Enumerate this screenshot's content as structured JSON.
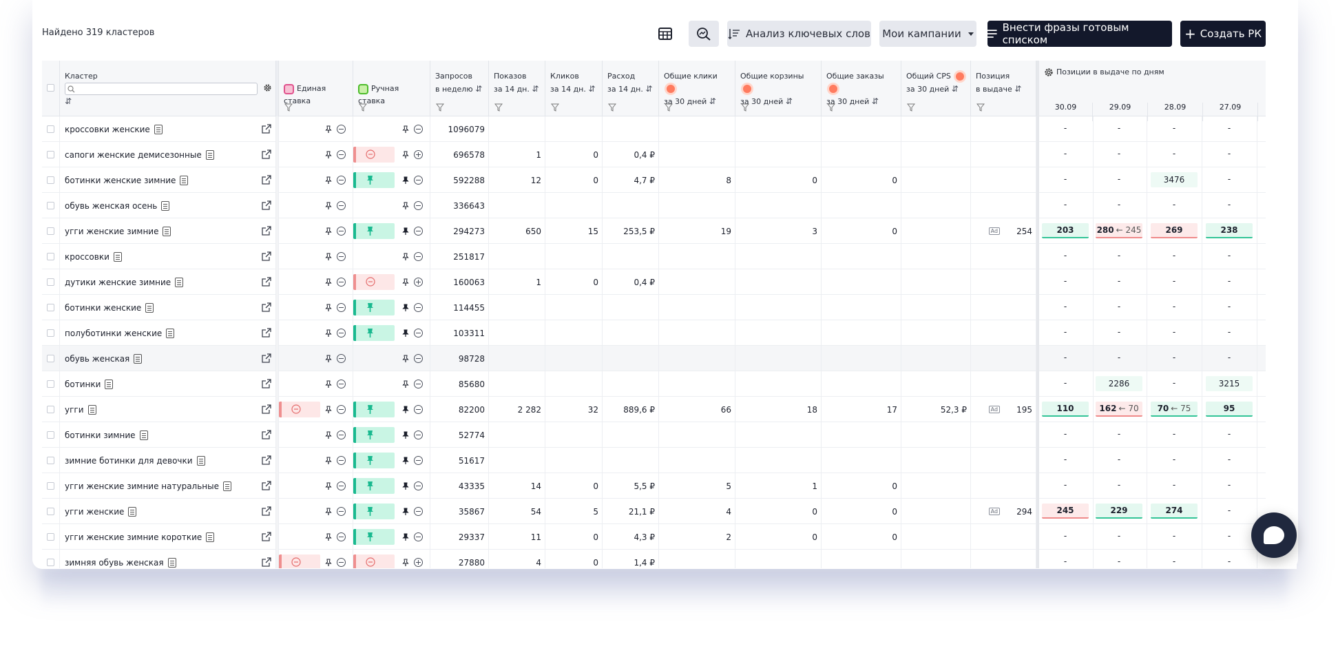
{
  "summary": "Найдено 319 кластеров",
  "toolbar": {
    "analysis_label": "Анализ ключевых слов",
    "campaigns_label": "Мои кампании",
    "bulk_label": "Внести фразы готовым списком",
    "create_label": "Создать РК"
  },
  "headers": {
    "cluster": "Кластер",
    "single_bid": "Единая ставка",
    "manual_bid": "Ручная ставка",
    "queries_1": "Запросов",
    "queries_2": "в неделю",
    "shows_1": "Показов",
    "shows_2": "за 14 дн.",
    "clicks_1": "Кликов",
    "clicks_2": "за 14 дн.",
    "spend_1": "Расход",
    "spend_2": "за 14 дн.",
    "total_clicks_1": "Общие клики",
    "total_clicks_2": "за 30 дней",
    "total_carts_1": "Общие корзины",
    "total_carts_2": "за 30 дней",
    "total_orders_1": "Общие заказы",
    "total_orders_2": "за 30 дней",
    "cps_1": "Общий CPS",
    "cps_2": "за 30 дней",
    "position_1": "Позиция",
    "position_2": "в выдаче",
    "daily_positions": "Позиции в выдаче по дням",
    "dates": [
      "30.09",
      "29.09",
      "28.09",
      "27.09"
    ]
  },
  "colors": {
    "dark_button": "#13182b",
    "green": "#19b98f",
    "red": "#ef8f8f",
    "orange_dot": "#ff7b5f"
  },
  "rows": [
    {
      "cluster": "кроссовки женские",
      "single": "",
      "manual": "",
      "manual_pinned": false,
      "queries": "1096079",
      "shows": "",
      "clicks": "",
      "spend": "",
      "tclicks": "",
      "tcarts": "",
      "torders": "",
      "cps": "",
      "ad": false,
      "position": "",
      "days": [
        {
          "v": "-"
        },
        {
          "v": "-"
        },
        {
          "v": "-"
        },
        {
          "v": "-"
        }
      ]
    },
    {
      "cluster": "сапоги женские демисезонные",
      "single": "",
      "manual": "red",
      "manual_pinned": false,
      "queries": "696578",
      "shows": "1",
      "clicks": "0",
      "spend": "0,4 ₽",
      "tclicks": "",
      "tcarts": "",
      "torders": "",
      "cps": "",
      "ad": false,
      "position": "",
      "days": [
        {
          "v": "-"
        },
        {
          "v": "-"
        },
        {
          "v": "-"
        },
        {
          "v": "-"
        }
      ]
    },
    {
      "cluster": "ботинки женские зимние",
      "single": "",
      "manual": "green",
      "manual_pinned": true,
      "queries": "592288",
      "shows": "12",
      "clicks": "0",
      "spend": "4,7 ₽",
      "tclicks": "8",
      "tcarts": "0",
      "torders": "0",
      "cps": "",
      "ad": false,
      "position": "",
      "days": [
        {
          "v": "-"
        },
        {
          "v": "-"
        },
        {
          "v": "3476",
          "s": "plain"
        },
        {
          "v": "-"
        }
      ]
    },
    {
      "cluster": "обувь женская осень",
      "single": "",
      "manual": "",
      "manual_pinned": false,
      "queries": "336643",
      "shows": "",
      "clicks": "",
      "spend": "",
      "tclicks": "",
      "tcarts": "",
      "torders": "",
      "cps": "",
      "ad": false,
      "position": "",
      "days": [
        {
          "v": "-"
        },
        {
          "v": "-"
        },
        {
          "v": "-"
        },
        {
          "v": "-"
        }
      ]
    },
    {
      "cluster": "угги женские зимние",
      "single": "",
      "manual": "green",
      "manual_pinned": true,
      "queries": "294273",
      "shows": "650",
      "clicks": "15",
      "spend": "253,5 ₽",
      "tclicks": "19",
      "tcarts": "3",
      "torders": "0",
      "cps": "",
      "ad": true,
      "ad_label": "Ad",
      "position": "254",
      "days": [
        {
          "v": "203",
          "s": "g"
        },
        {
          "v": "280",
          "s": "r",
          "prev": "← 245"
        },
        {
          "v": "269",
          "s": "r"
        },
        {
          "v": "238",
          "s": "g"
        }
      ]
    },
    {
      "cluster": "кроссовки",
      "single": "",
      "manual": "",
      "manual_pinned": false,
      "queries": "251817",
      "shows": "",
      "clicks": "",
      "spend": "",
      "tclicks": "",
      "tcarts": "",
      "torders": "",
      "cps": "",
      "ad": false,
      "position": "",
      "days": [
        {
          "v": "-"
        },
        {
          "v": "-"
        },
        {
          "v": "-"
        },
        {
          "v": "-"
        }
      ]
    },
    {
      "cluster": "дутики женские зимние",
      "single": "",
      "manual": "red",
      "manual_pinned": false,
      "queries": "160063",
      "shows": "1",
      "clicks": "0",
      "spend": "0,4 ₽",
      "tclicks": "",
      "tcarts": "",
      "torders": "",
      "cps": "",
      "ad": false,
      "position": "",
      "days": [
        {
          "v": "-"
        },
        {
          "v": "-"
        },
        {
          "v": "-"
        },
        {
          "v": "-"
        }
      ]
    },
    {
      "cluster": "ботинки женские",
      "single": "",
      "manual": "green",
      "manual_pinned": true,
      "queries": "114455",
      "shows": "",
      "clicks": "",
      "spend": "",
      "tclicks": "",
      "tcarts": "",
      "torders": "",
      "cps": "",
      "ad": false,
      "position": "",
      "days": [
        {
          "v": "-"
        },
        {
          "v": "-"
        },
        {
          "v": "-"
        },
        {
          "v": "-"
        }
      ]
    },
    {
      "cluster": "полуботинки женские",
      "single": "",
      "manual": "green",
      "manual_pinned": true,
      "queries": "103311",
      "shows": "",
      "clicks": "",
      "spend": "",
      "tclicks": "",
      "tcarts": "",
      "torders": "",
      "cps": "",
      "ad": false,
      "position": "",
      "days": [
        {
          "v": "-"
        },
        {
          "v": "-"
        },
        {
          "v": "-"
        },
        {
          "v": "-"
        }
      ]
    },
    {
      "cluster": "обувь женская",
      "single": "",
      "manual": "",
      "manual_pinned": false,
      "queries": "98728",
      "shows": "",
      "clicks": "",
      "spend": "",
      "tclicks": "",
      "tcarts": "",
      "torders": "",
      "cps": "",
      "ad": false,
      "position": "",
      "alt": true,
      "days": [
        {
          "v": "-"
        },
        {
          "v": "-"
        },
        {
          "v": "-"
        },
        {
          "v": "-"
        }
      ]
    },
    {
      "cluster": "ботинки",
      "single": "",
      "manual": "",
      "manual_pinned": false,
      "queries": "85680",
      "shows": "",
      "clicks": "",
      "spend": "",
      "tclicks": "",
      "tcarts": "",
      "torders": "",
      "cps": "",
      "ad": false,
      "position": "",
      "days": [
        {
          "v": "-"
        },
        {
          "v": "2286",
          "s": "plain"
        },
        {
          "v": "-"
        },
        {
          "v": "3215",
          "s": "plain"
        }
      ]
    },
    {
      "cluster": "угги",
      "single": "red",
      "manual": "green",
      "manual_pinned": true,
      "queries": "82200",
      "shows": "2 282",
      "clicks": "32",
      "spend": "889,6 ₽",
      "tclicks": "66",
      "tcarts": "18",
      "torders": "17",
      "cps": "52,3 ₽",
      "ad": true,
      "ad_label": "Ad",
      "position": "195",
      "days": [
        {
          "v": "110",
          "s": "g"
        },
        {
          "v": "162",
          "s": "r",
          "prev": "← 70"
        },
        {
          "v": "70",
          "s": "g",
          "prev": "← 75"
        },
        {
          "v": "95",
          "s": "g"
        }
      ]
    },
    {
      "cluster": "ботинки зимние",
      "single": "",
      "manual": "green",
      "manual_pinned": true,
      "queries": "52774",
      "shows": "",
      "clicks": "",
      "spend": "",
      "tclicks": "",
      "tcarts": "",
      "torders": "",
      "cps": "",
      "ad": false,
      "position": "",
      "days": [
        {
          "v": "-"
        },
        {
          "v": "-"
        },
        {
          "v": "-"
        },
        {
          "v": "-"
        }
      ]
    },
    {
      "cluster": "зимние ботинки для девочки",
      "single": "",
      "manual": "green",
      "manual_pinned": true,
      "queries": "51617",
      "shows": "",
      "clicks": "",
      "spend": "",
      "tclicks": "",
      "tcarts": "",
      "torders": "",
      "cps": "",
      "ad": false,
      "position": "",
      "days": [
        {
          "v": "-"
        },
        {
          "v": "-"
        },
        {
          "v": "-"
        },
        {
          "v": "-"
        }
      ]
    },
    {
      "cluster": "угги женские зимние натуральные",
      "single": "",
      "manual": "green",
      "manual_pinned": true,
      "queries": "43335",
      "shows": "14",
      "clicks": "0",
      "spend": "5,5 ₽",
      "tclicks": "5",
      "tcarts": "1",
      "torders": "0",
      "cps": "",
      "ad": false,
      "position": "",
      "days": [
        {
          "v": "-"
        },
        {
          "v": "-"
        },
        {
          "v": "-"
        },
        {
          "v": "-"
        }
      ]
    },
    {
      "cluster": "угги женские",
      "single": "",
      "manual": "green",
      "manual_pinned": true,
      "queries": "35867",
      "shows": "54",
      "clicks": "5",
      "spend": "21,1 ₽",
      "tclicks": "4",
      "tcarts": "0",
      "torders": "0",
      "cps": "",
      "ad": true,
      "ad_label": "Ad",
      "position": "294",
      "days": [
        {
          "v": "245",
          "s": "r"
        },
        {
          "v": "229",
          "s": "g"
        },
        {
          "v": "274",
          "s": "g"
        },
        {
          "v": "-"
        }
      ]
    },
    {
      "cluster": "угги женские зимние короткие",
      "single": "",
      "manual": "green",
      "manual_pinned": true,
      "queries": "29337",
      "shows": "11",
      "clicks": "0",
      "spend": "4,3 ₽",
      "tclicks": "2",
      "tcarts": "0",
      "torders": "0",
      "cps": "",
      "ad": false,
      "position": "",
      "days": [
        {
          "v": "-"
        },
        {
          "v": "-"
        },
        {
          "v": "-"
        },
        {
          "v": "-"
        }
      ]
    },
    {
      "cluster": "зимняя обувь женская",
      "single": "red",
      "manual": "red",
      "manual_pinned": false,
      "queries": "27880",
      "shows": "4",
      "clicks": "0",
      "spend": "1,4 ₽",
      "tclicks": "",
      "tcarts": "",
      "torders": "",
      "cps": "",
      "ad": false,
      "position": "",
      "days": [
        {
          "v": "-"
        },
        {
          "v": "-"
        },
        {
          "v": "-"
        },
        {
          "v": "-"
        }
      ]
    }
  ]
}
